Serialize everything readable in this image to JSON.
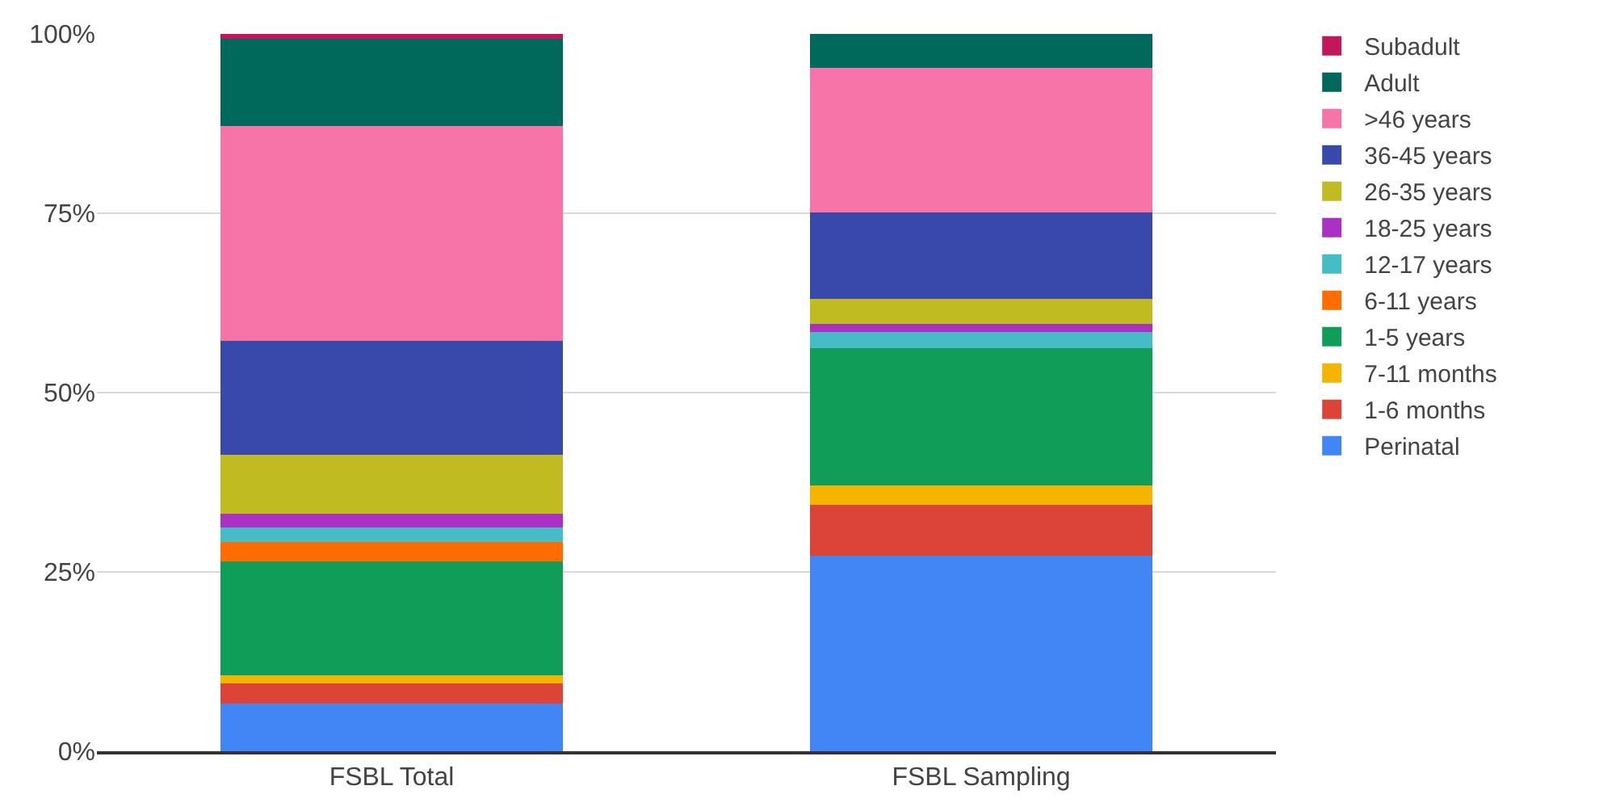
{
  "chart_data": {
    "type": "bar",
    "stacked": true,
    "categories": [
      "FSBL Total",
      "FSBL Sampling"
    ],
    "series": [
      {
        "name": "Perinatal",
        "color": "#4285f4",
        "values": [
          6.7,
          27.3
        ]
      },
      {
        "name": "1-6 months",
        "color": "#db4437",
        "values": [
          2.8,
          7.0
        ]
      },
      {
        "name": "7-11 months",
        "color": "#f4b400",
        "values": [
          1.1,
          2.8
        ]
      },
      {
        "name": "1-5 years",
        "color": "#0f9d58",
        "values": [
          15.9,
          19.1
        ]
      },
      {
        "name": "6-11 years",
        "color": "#ff6d00",
        "values": [
          2.7,
          0
        ]
      },
      {
        "name": "12-17 years",
        "color": "#46bdc6",
        "values": [
          2.0,
          2.2
        ]
      },
      {
        "name": "18-25 years",
        "color": "#ab30c4",
        "values": [
          1.9,
          1.2
        ]
      },
      {
        "name": "26-35 years",
        "color": "#c0bb20",
        "values": [
          8.2,
          3.5
        ]
      },
      {
        "name": "36-45 years",
        "color": "#3949ab",
        "values": [
          15.9,
          12.0
        ]
      },
      {
        "name": ">46 years",
        "color": "#f774a8",
        "values": [
          30.0,
          20.2
        ]
      },
      {
        "name": "Adult",
        "color": "#00695c",
        "values": [
          12.1,
          4.7
        ]
      },
      {
        "name": "Subadult",
        "color": "#c2185b",
        "values": [
          0.7,
          0
        ]
      }
    ],
    "ylim": [
      0,
      100
    ],
    "yticks": [
      {
        "value": 0,
        "label": "0%"
      },
      {
        "value": 25,
        "label": "25%"
      },
      {
        "value": 50,
        "label": "50%"
      },
      {
        "value": 75,
        "label": "75%"
      },
      {
        "value": 100,
        "label": "100%"
      }
    ],
    "grid": "y",
    "legend": "right"
  }
}
